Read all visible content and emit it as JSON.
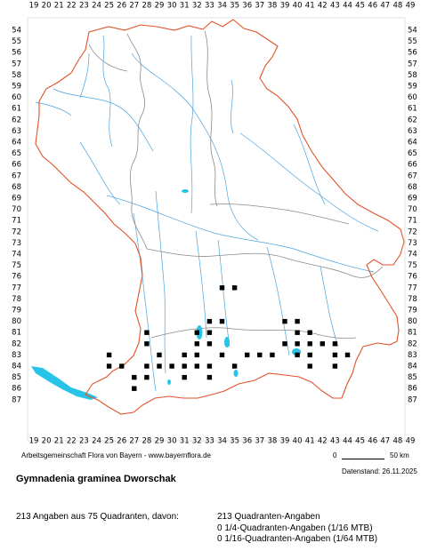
{
  "grid": {
    "x_labels": [
      "19",
      "20",
      "21",
      "22",
      "23",
      "24",
      "25",
      "26",
      "27",
      "28",
      "29",
      "30",
      "31",
      "32",
      "33",
      "34",
      "35",
      "36",
      "37",
      "38",
      "39",
      "40",
      "41",
      "42",
      "43",
      "44",
      "45",
      "46",
      "47",
      "48",
      "49"
    ],
    "y_labels": [
      "54",
      "55",
      "56",
      "57",
      "58",
      "59",
      "60",
      "61",
      "62",
      "63",
      "64",
      "65",
      "66",
      "67",
      "68",
      "69",
      "70",
      "71",
      "72",
      "73",
      "74",
      "75",
      "76",
      "77",
      "78",
      "79",
      "80",
      "81",
      "82",
      "83",
      "84",
      "85",
      "86",
      "87"
    ]
  },
  "colors": {
    "border": "#e0522a",
    "region_lines": "#808080",
    "rivers": "#4aa3df",
    "lakes": "#27c4e8",
    "markers": "#000000"
  },
  "markers": [
    [
      34,
      77
    ],
    [
      35,
      77
    ],
    [
      33,
      80
    ],
    [
      34,
      80
    ],
    [
      39,
      80
    ],
    [
      40,
      80
    ],
    [
      28,
      81
    ],
    [
      32,
      81
    ],
    [
      33,
      81
    ],
    [
      40,
      81
    ],
    [
      41,
      81
    ],
    [
      28,
      82
    ],
    [
      32,
      82
    ],
    [
      33,
      82
    ],
    [
      39,
      82
    ],
    [
      40,
      82
    ],
    [
      41,
      82
    ],
    [
      42,
      82
    ],
    [
      43,
      82
    ],
    [
      25,
      83
    ],
    [
      29,
      83
    ],
    [
      31,
      83
    ],
    [
      32,
      83
    ],
    [
      34,
      83
    ],
    [
      36,
      83
    ],
    [
      37,
      83
    ],
    [
      38,
      83
    ],
    [
      40,
      83
    ],
    [
      41,
      83
    ],
    [
      43,
      83
    ],
    [
      44,
      83
    ],
    [
      25,
      84
    ],
    [
      26,
      84
    ],
    [
      28,
      84
    ],
    [
      29,
      84
    ],
    [
      30,
      84
    ],
    [
      31,
      84
    ],
    [
      32,
      84
    ],
    [
      33,
      84
    ],
    [
      35,
      84
    ],
    [
      41,
      84
    ],
    [
      43,
      84
    ],
    [
      27,
      85
    ],
    [
      28,
      85
    ],
    [
      31,
      85
    ],
    [
      33,
      85
    ],
    [
      27,
      86
    ]
  ],
  "credit": "Arbeitsgemeinschaft Flora von Bayern - www.bayernflora.de",
  "scale": {
    "zero": "0",
    "end": "50 km"
  },
  "date": "Datenstand: 26.11.2025",
  "title": "Gymnadenia graminea Dworschak",
  "summary": "213 Angaben aus 75 Quadranten, davon:",
  "stats": [
    "213 Quadranten-Angaben",
    "0 1/4-Quadranten-Angaben (1/16 MTB)",
    "0 1/16-Quadranten-Angaben (1/64 MTB)"
  ]
}
